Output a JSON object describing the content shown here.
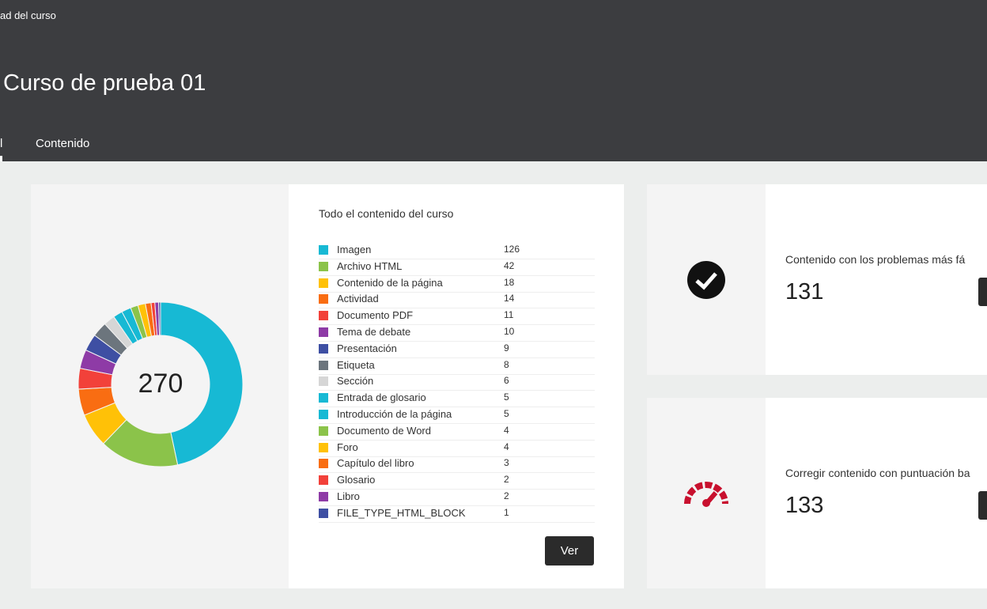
{
  "header": {
    "breadcrumb": "ad del curso",
    "title": "Curso de prueba 01",
    "tabs": [
      "l",
      "Contenido"
    ]
  },
  "content_card": {
    "title": "Todo el contenido del curso",
    "total": 270,
    "button": "Ver",
    "items": [
      {
        "label": "Imagen",
        "value": 126,
        "color": "#17b9d4"
      },
      {
        "label": "Archivo HTML",
        "value": 42,
        "color": "#8bc34a"
      },
      {
        "label": "Contenido de la página",
        "value": 18,
        "color": "#ffc107"
      },
      {
        "label": "Actividad",
        "value": 14,
        "color": "#f96d12"
      },
      {
        "label": "Documento PDF",
        "value": 11,
        "color": "#f2413a"
      },
      {
        "label": "Tema de debate",
        "value": 10,
        "color": "#8e3ba6"
      },
      {
        "label": "Presentación",
        "value": 9,
        "color": "#3e4fa3"
      },
      {
        "label": "Etiqueta",
        "value": 8,
        "color": "#6c757d"
      },
      {
        "label": "Sección",
        "value": 6,
        "color": "#d6d6d6"
      },
      {
        "label": "Entrada de glosario",
        "value": 5,
        "color": "#17b9d4"
      },
      {
        "label": "Introducción de la página",
        "value": 5,
        "color": "#17b9d4"
      },
      {
        "label": "Documento de Word",
        "value": 4,
        "color": "#8bc34a"
      },
      {
        "label": "Foro",
        "value": 4,
        "color": "#ffc107"
      },
      {
        "label": "Capítulo del libro",
        "value": 3,
        "color": "#f96d12"
      },
      {
        "label": "Glosario",
        "value": 2,
        "color": "#f2413a"
      },
      {
        "label": "Libro",
        "value": 2,
        "color": "#8e3ba6"
      },
      {
        "label": "FILE_TYPE_HTML_BLOCK",
        "value": 1,
        "color": "#3e4fa3"
      }
    ]
  },
  "cards": [
    {
      "text": "Contenido con los problemas más fá",
      "number": 131
    },
    {
      "text": "Corregir contenido con puntuación ba",
      "number": 133
    }
  ]
}
